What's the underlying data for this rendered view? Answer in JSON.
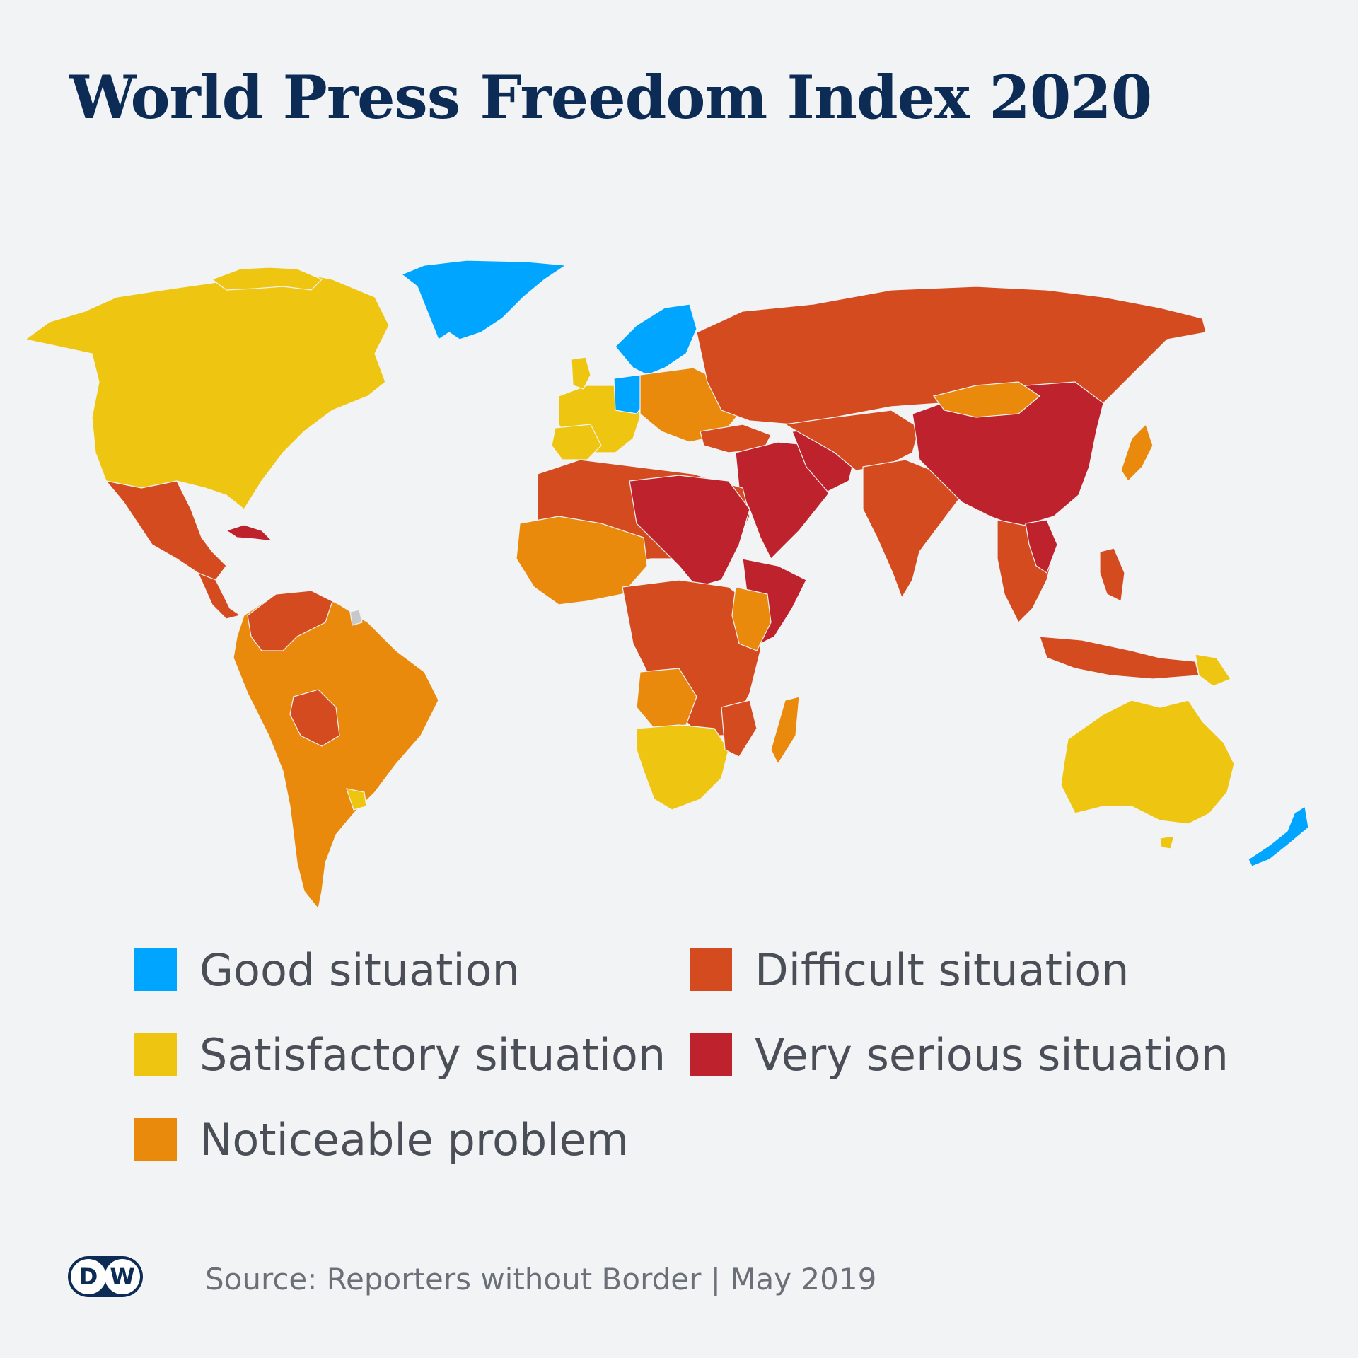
{
  "title": "World Press Freedom Index 2020",
  "legend": [
    {
      "label": "Good situation",
      "color": "#00a5ff"
    },
    {
      "label": "Difficult situation",
      "color": "#d44b20"
    },
    {
      "label": "Satisfactory situation",
      "color": "#eec611"
    },
    {
      "label": "Very serious situation",
      "color": "#be222c"
    },
    {
      "label": "Noticeable problem",
      "color": "#ea8a0d"
    }
  ],
  "colors": {
    "background": "#f2f3f5",
    "title": "#0c2b55",
    "good": "#00a5ff",
    "satisfactory": "#eec611",
    "noticeable": "#ea8a0d",
    "difficult": "#d44b20",
    "very_serious": "#be222c",
    "no_data": "#c8c8c8"
  },
  "footer": {
    "logo_text": "DW",
    "source": "Source: Reporters without Border | May 2019"
  }
}
